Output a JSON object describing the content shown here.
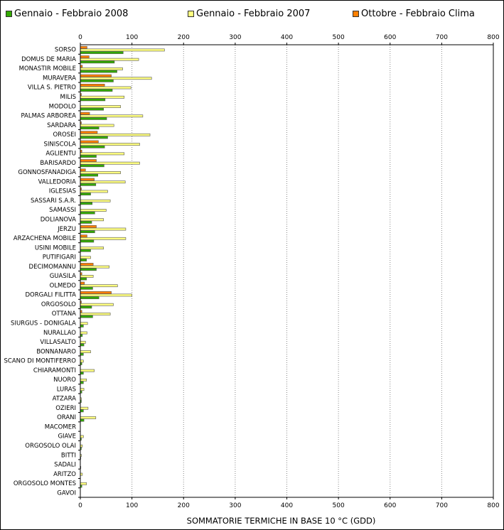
{
  "chart_data": {
    "type": "bar",
    "orientation": "horizontal",
    "title": "",
    "xlabel": "SOMMATORIE TERMICHE IN BASE 10 °C (GDD)",
    "ylabel": "",
    "xlim": [
      0,
      800
    ],
    "xticks": [
      "0",
      "100",
      "200",
      "300",
      "400",
      "500",
      "600",
      "700",
      "800"
    ],
    "grid": "vertical dashed",
    "legend_position": "top",
    "categories": [
      "SORSO",
      "DOMUS DE MARIA",
      "MONASTIR MOBILE",
      "MURAVERA",
      "VILLA S. PIETRO",
      "MILIS",
      "MODOLO",
      "PALMAS ARBOREA",
      "SARDARA",
      "OROSEI",
      "SINISCOLA",
      "AGLIENTU",
      "BARISARDO",
      "GONNOSFANADIGA",
      "VALLEDORIA",
      "IGLESIAS",
      "SASSARI S.A.R.",
      "SAMASSI",
      "DOLIANOVA",
      "JERZU",
      "ARZACHENA MOBILE",
      "USINI MOBILE",
      "PUTIFIGARI",
      "DECIMOMANNU",
      "GUASILA",
      "OLMEDO",
      "DORGALI FILITTA",
      "ORGOSOLO",
      "OTTANA",
      "SIURGUS - DONIGALA",
      "NURALLAO",
      "VILLASALTO",
      "BONNANARO",
      "SCANO DI MONTIFERRO",
      "CHIARAMONTI",
      "NUORO",
      "LURAS",
      "ATZARA",
      "OZIERI",
      "ORANI",
      "MACOMER",
      "GIAVE",
      "ORGOSOLO OLAI",
      "BITTI",
      "SADALI",
      "ARITZO",
      "ORGOSOLO MONTES",
      "GAVOI"
    ],
    "series": [
      {
        "name": "Ottobre - Febbraio Clima",
        "color": "#ff8000",
        "values": [
          13,
          17,
          4,
          60,
          47,
          2,
          0,
          18,
          2,
          33,
          35,
          3,
          31,
          10,
          27,
          2,
          0,
          0,
          0,
          31,
          13,
          0,
          0,
          25,
          3,
          8,
          60,
          2,
          3,
          0,
          0,
          0,
          0,
          0,
          0,
          0,
          0,
          0,
          0,
          0,
          0,
          0,
          0,
          0,
          0,
          0,
          0,
          0
        ]
      },
      {
        "name": "Gennaio - Febbraio 2007",
        "color": "#ffff80",
        "values": [
          163,
          113,
          82,
          138,
          98,
          85,
          78,
          121,
          65,
          135,
          115,
          85,
          115,
          78,
          87,
          53,
          58,
          50,
          45,
          88,
          88,
          45,
          20,
          56,
          25,
          72,
          100,
          64,
          58,
          14,
          13,
          10,
          20,
          6,
          27,
          12,
          7,
          2,
          15,
          30,
          0,
          6,
          4,
          2,
          0,
          4,
          12,
          0
        ]
      },
      {
        "name": "Gennaio - Febbraio 2008",
        "color": "#33aa00",
        "values": [
          83,
          66,
          71,
          64,
          62,
          48,
          45,
          51,
          36,
          53,
          47,
          31,
          46,
          34,
          30,
          20,
          23,
          28,
          22,
          28,
          26,
          20,
          12,
          31,
          12,
          24,
          36,
          22,
          24,
          6,
          4,
          7,
          6,
          3,
          6,
          6,
          3,
          2,
          6,
          7,
          0,
          2,
          2,
          1,
          1,
          0,
          3,
          0
        ]
      }
    ]
  }
}
